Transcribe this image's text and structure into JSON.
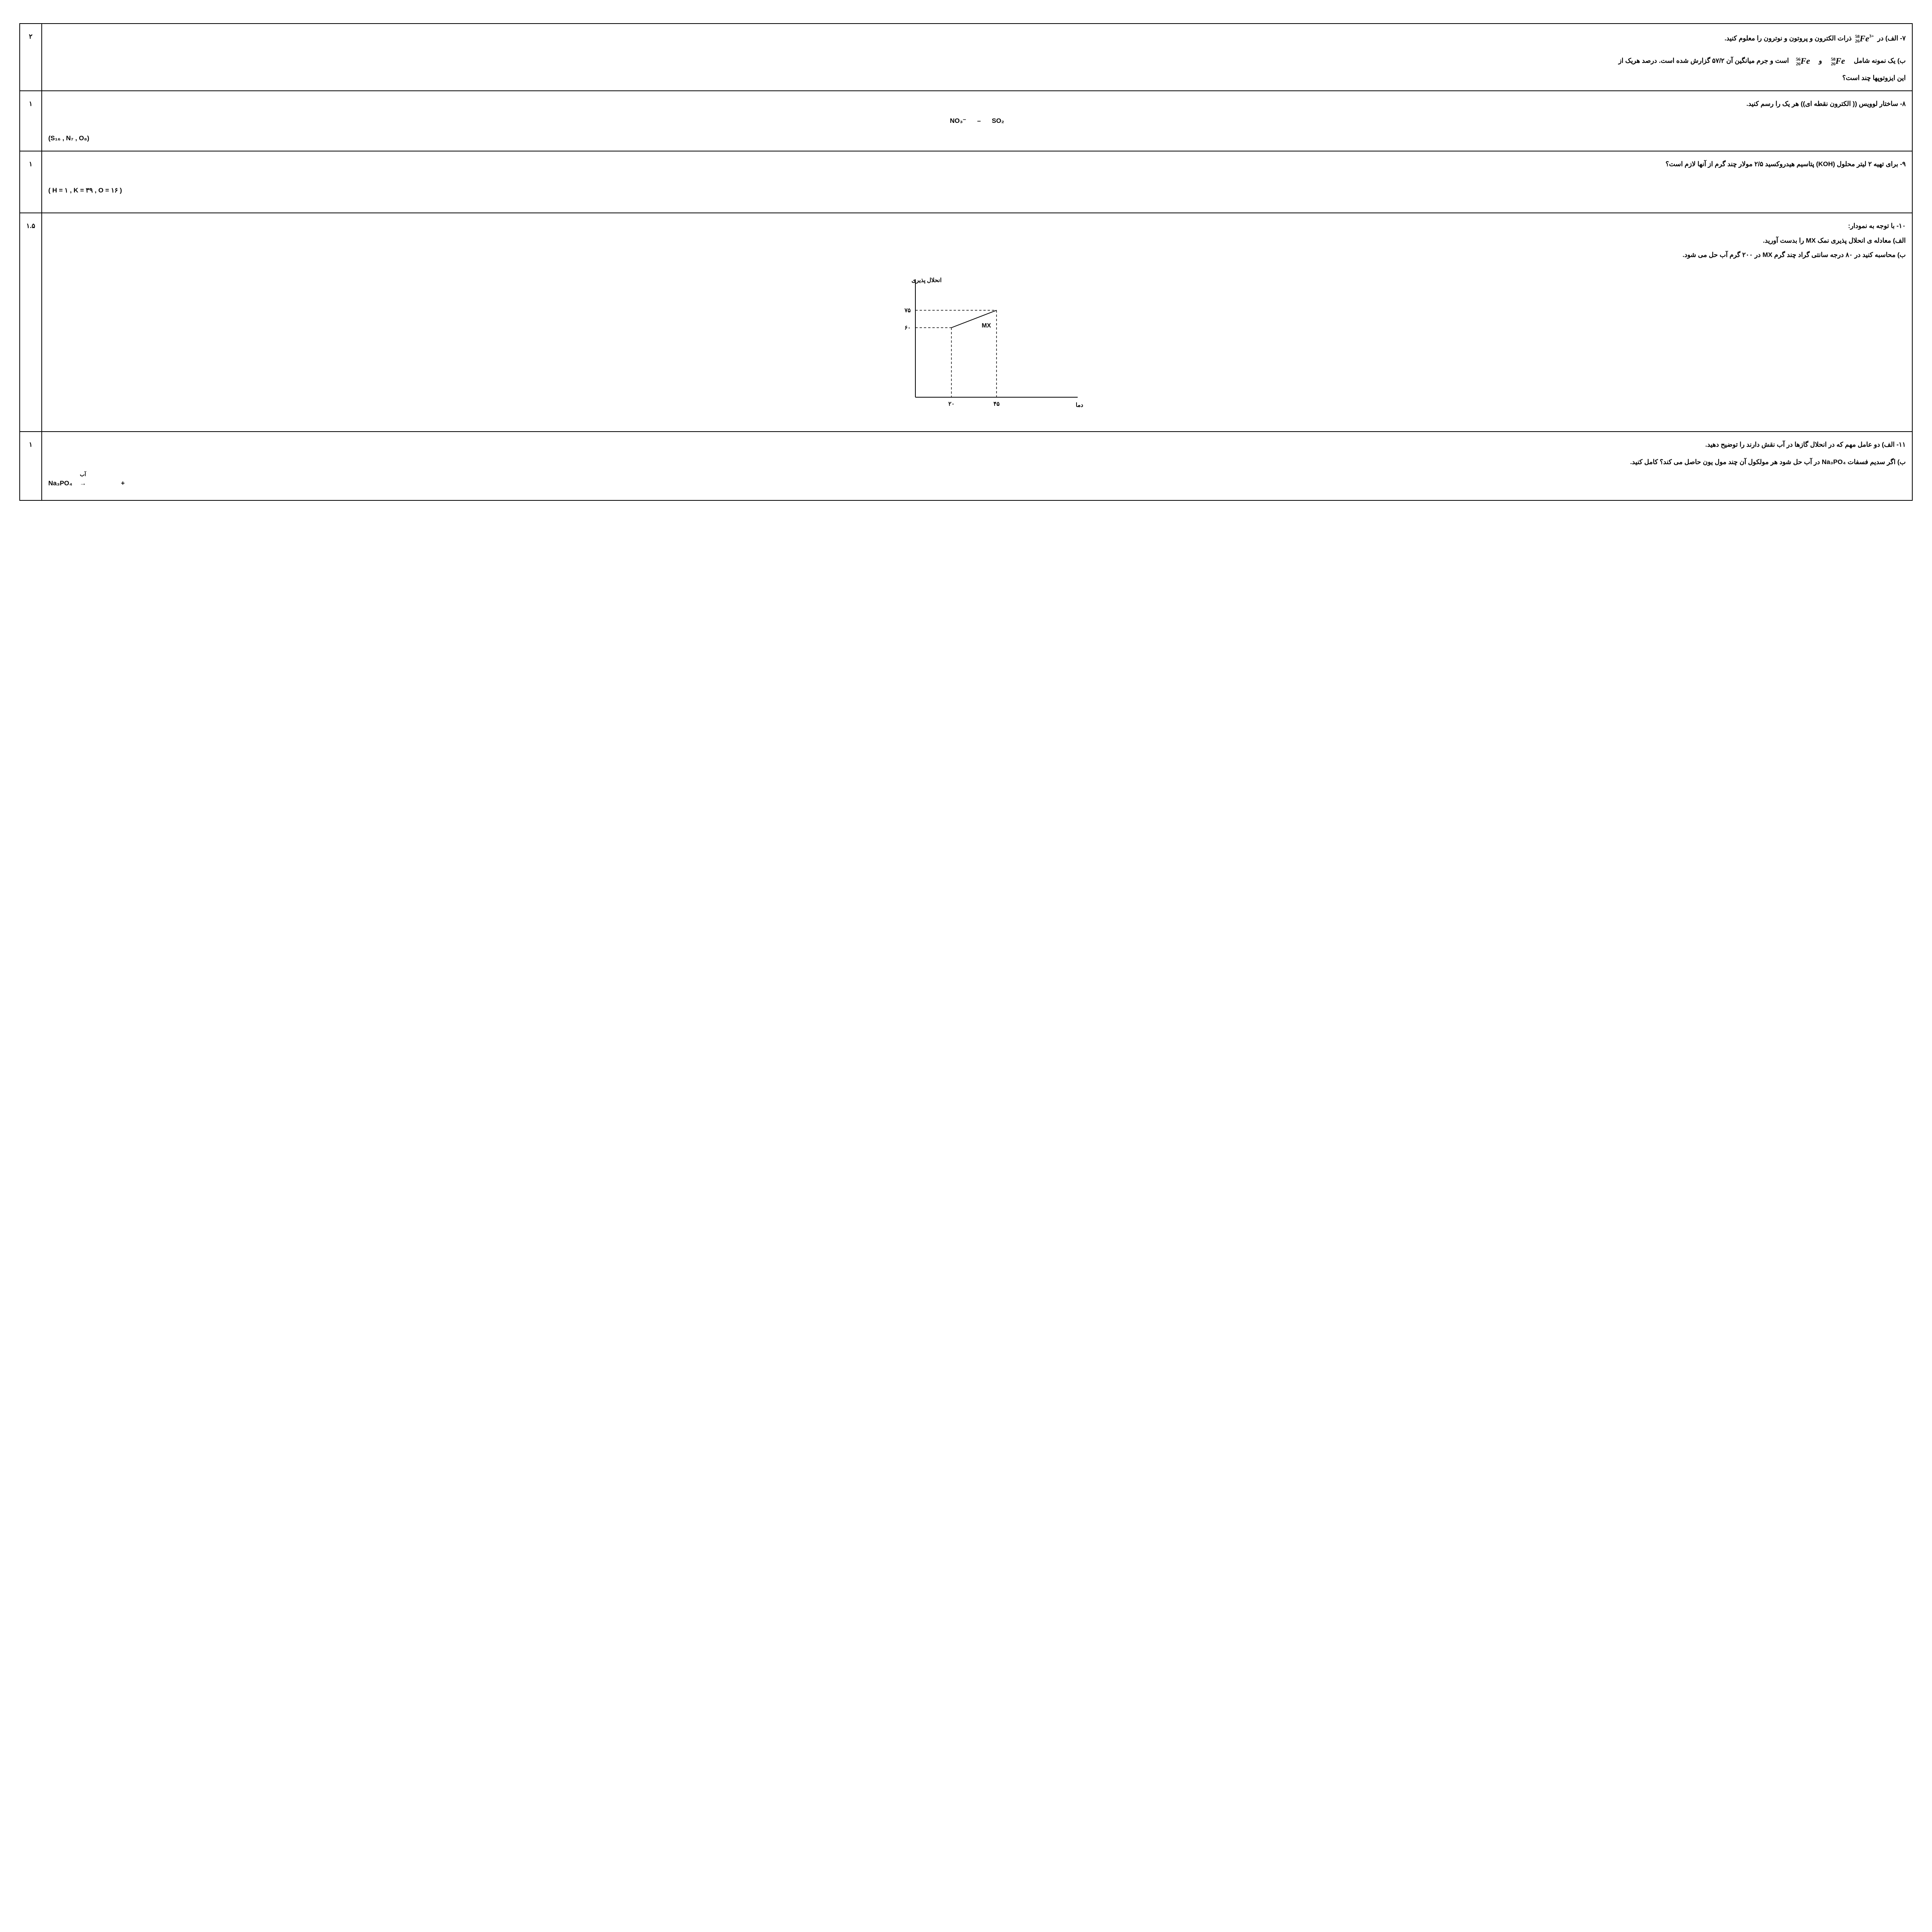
{
  "q7": {
    "score": "٢",
    "a_prefix": "٧-  الف) در",
    "a_suffix": "ذرات الکترون و پروتون و نوترون را معلوم کنید.",
    "b_prefix": "ب)  یک نمونه شامل",
    "b_mid": "و",
    "b_suffix": "است و جرم میانگین آن ۵٧/٢ گزارش شده است. درصد هریک از",
    "b_line2": "این ایزوتوپها چند است؟",
    "iso1": {
      "mass": "58",
      "z": "26",
      "sym": "Fe",
      "charge": "3+"
    },
    "iso2": {
      "mass": "58",
      "z": "26",
      "sym": "Fe"
    },
    "iso3": {
      "mass": "56",
      "z": "26",
      "sym": "Fe"
    }
  },
  "q8": {
    "score": "١",
    "text": "٨- ساختار لوویس (( الکترون نقطه ای)) هر یک را رسم کنید.",
    "formula_left": "NO₃⁻",
    "sep": "–",
    "formula_right": "SO₂",
    "atoms": "(S₁₆   ,    N₇    ,     O₈)"
  },
  "q9": {
    "score": "١",
    "text": "٩- برای تهیه ٢ لیتر محلول (KOH) پتاسیم هیدروکسید   ٢/۵ مولار چند گرم از آنها لازم است؟",
    "masses": "( H = ١   ,    K = ٣٩    ,    O = ١۶ )"
  },
  "q10": {
    "score": "١.۵",
    "intro": "١٠- با توجه به نمودار:",
    "a": "الف) معادله ی انحلال پذیری نمک MX را بدست آورید.",
    "b": "ب) محاسبه کنید در ٨٠ درجه سانتی گراد چند گرم MX در ٢٠٠ گرم آب حل می شود.",
    "chart": {
      "y_label": "انحلال پذیری",
      "x_label": "دما",
      "series_label": "MX",
      "x_ticks": [
        "٢٠",
        "۴۵"
      ],
      "y_ticks": [
        "۶٠",
        "٧۵"
      ],
      "points": [
        {
          "x": 20,
          "y": 60
        },
        {
          "x": 45,
          "y": 75
        }
      ],
      "x_domain": [
        0,
        90
      ],
      "y_domain": [
        0,
        100
      ],
      "axis_color": "#000000",
      "line_color": "#000000",
      "dash_color": "#000000",
      "background": "#ffffff",
      "line_width": 2,
      "font_size": 15
    }
  },
  "q11": {
    "score": "١",
    "a": "١١-  الف) دو عامل مهم که در انحلال گازها در آب نقش دارند را توضیح دهید.",
    "b": "ب) اگر سدیم فسفات   Na₃PO₄   در آب حل شود هر مولکول آن چند مول یون حاصل می کند؟ کامل کنید.",
    "eq_compound": "Na₃PO₄",
    "eq_top": "آب",
    "eq_arrow": "→",
    "eq_plus": "+"
  }
}
